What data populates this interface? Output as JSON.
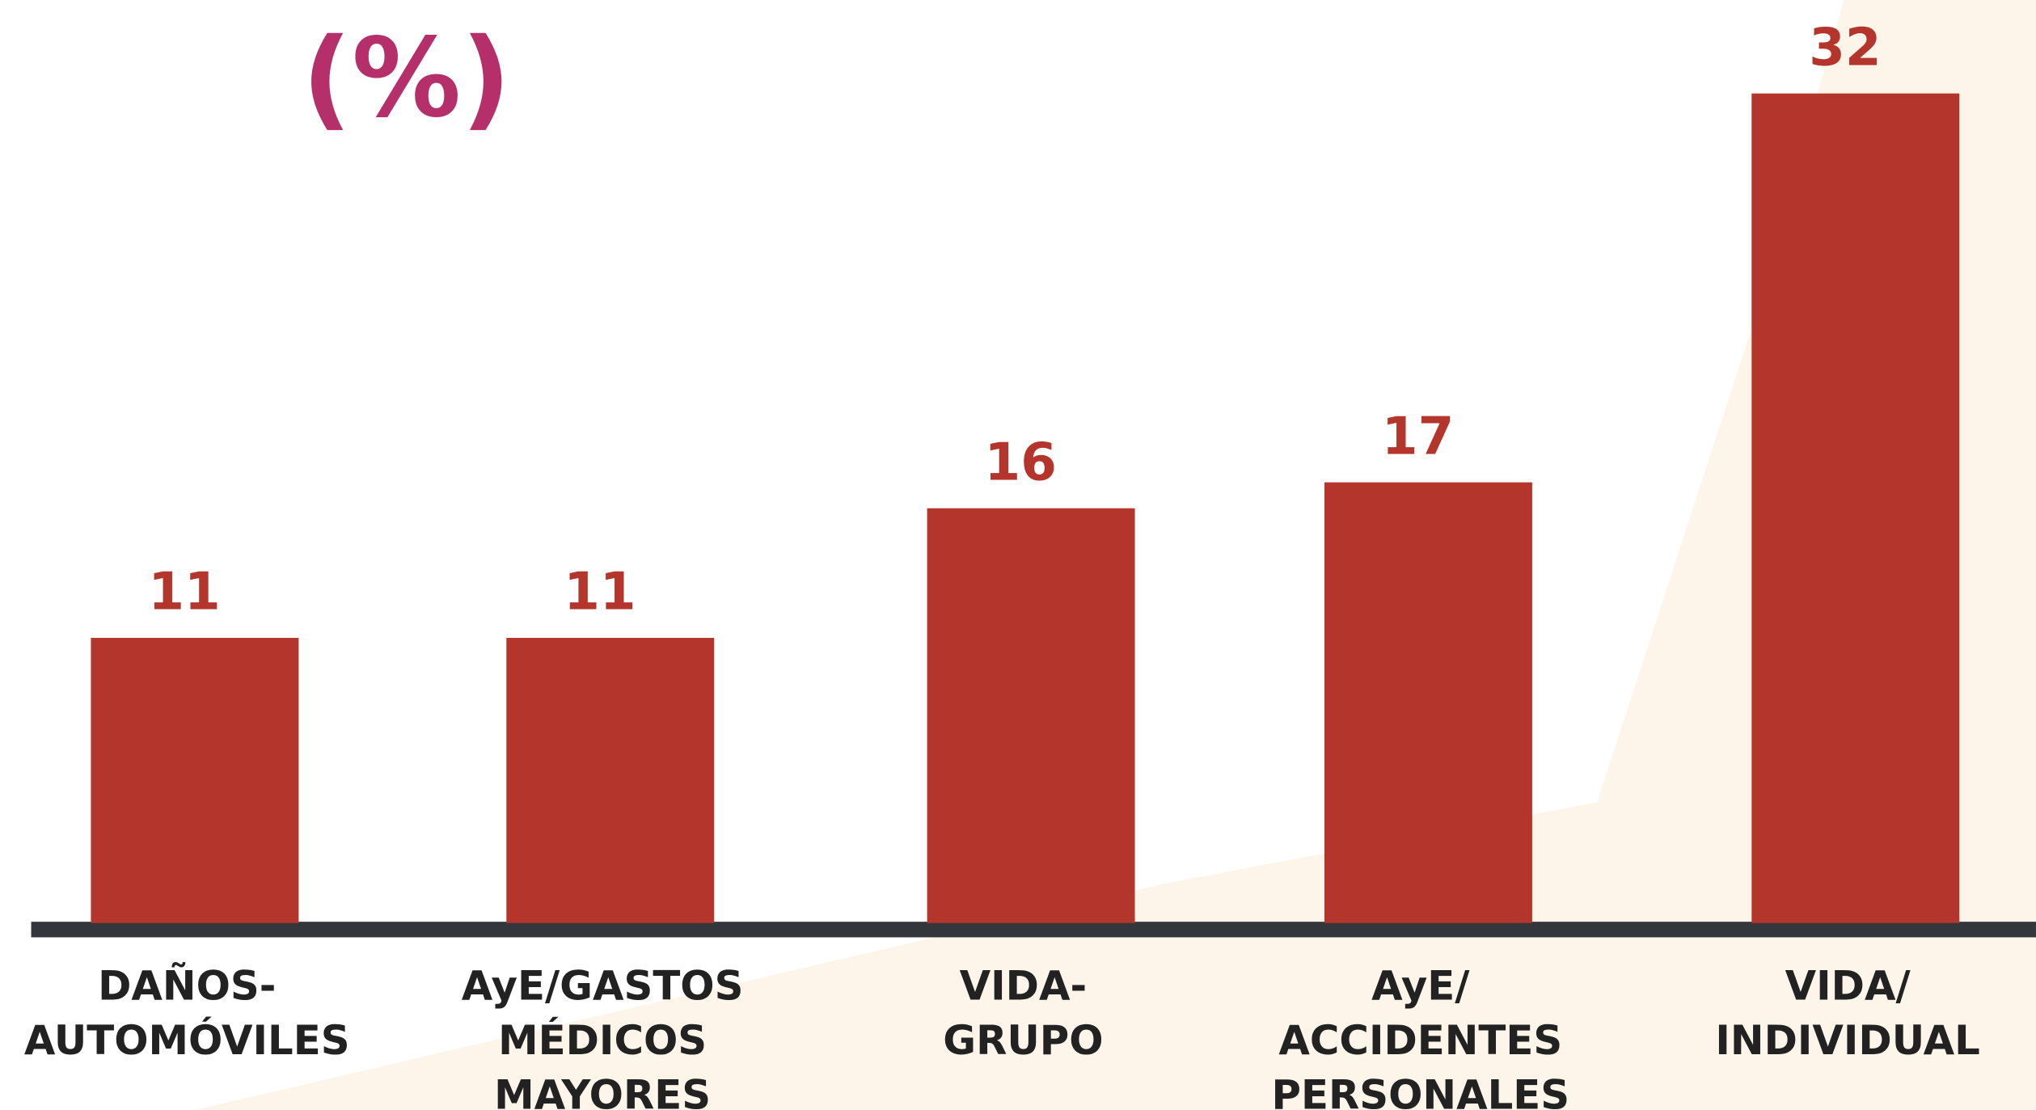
{
  "chart_data": {
    "type": "bar",
    "title": "(%)",
    "categories": [
      [
        "DAÑOS-",
        "AUTOMÓVILES"
      ],
      [
        "AyE/GASTOS",
        "MÉDICOS",
        "MAYORES"
      ],
      [
        "VIDA-",
        "GRUPO"
      ],
      [
        "AyE/",
        "ACCIDENTES",
        "PERSONALES"
      ],
      [
        "VIDA/",
        "INDIVIDUAL"
      ]
    ],
    "values": [
      11,
      11,
      16,
      17,
      32
    ],
    "color": "#b3352b",
    "title_color": "#b5306a"
  }
}
